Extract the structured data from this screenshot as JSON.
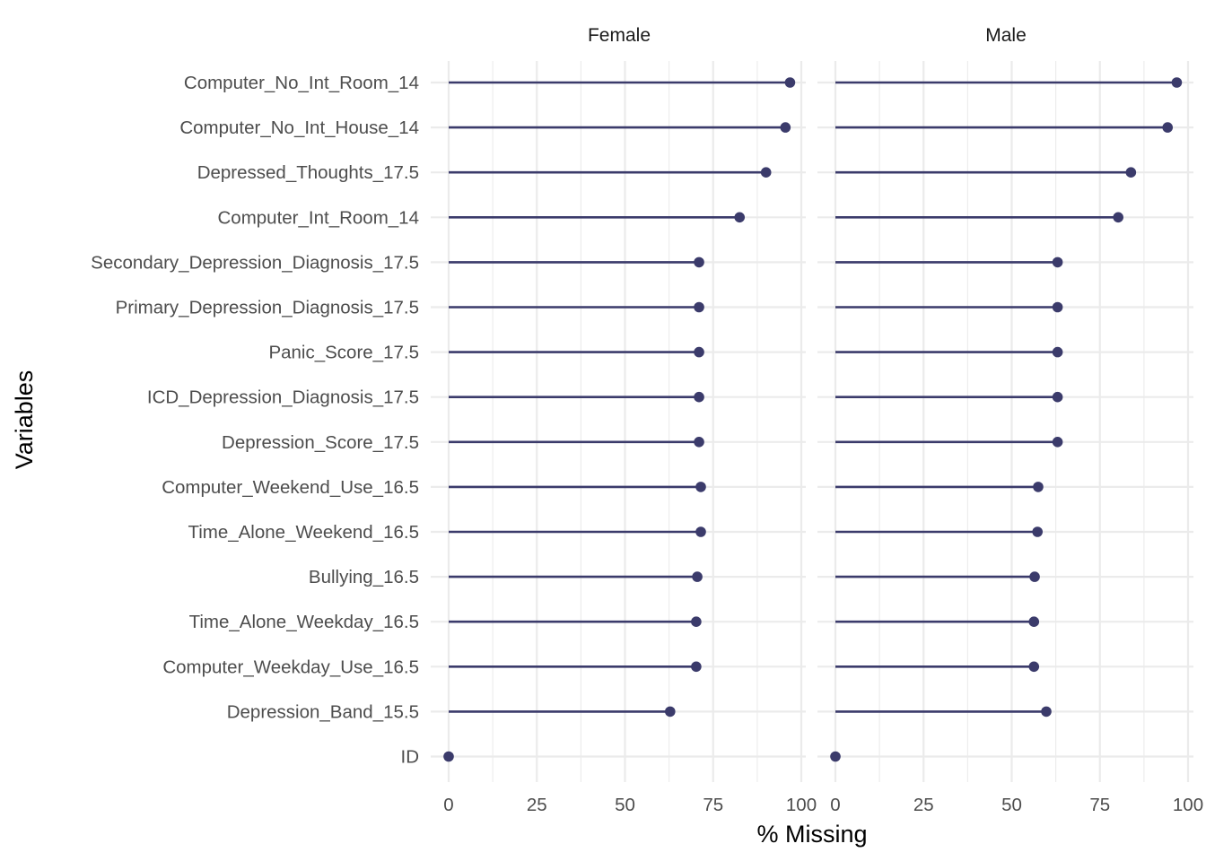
{
  "chart_data": {
    "type": "lollipop",
    "facets": [
      "Female",
      "Male"
    ],
    "xlabel": "% Missing",
    "ylabel": "Variables",
    "xlim": [
      0,
      100
    ],
    "xticks": [
      0,
      25,
      50,
      75,
      100
    ],
    "grid": true,
    "colors": {
      "point": "#3b3b6b",
      "grid": "#ebebeb"
    },
    "categories": [
      "Computer_No_Int_Room_14",
      "Computer_No_Int_House_14",
      "Depressed_Thoughts_17.5",
      "Computer_Int_Room_14",
      "Secondary_Depression_Diagnosis_17.5",
      "Primary_Depression_Diagnosis_17.5",
      "Panic_Score_17.5",
      "ICD_Depression_Diagnosis_17.5",
      "Depression_Score_17.5",
      "Computer_Weekend_Use_16.5",
      "Time_Alone_Weekend_16.5",
      "Bullying_16.5",
      "Time_Alone_Weekday_16.5",
      "Computer_Weekday_Use_16.5",
      "Depression_Band_15.5",
      "ID"
    ],
    "series": [
      {
        "name": "Female",
        "values": [
          96.8,
          95.5,
          90.0,
          82.5,
          71.0,
          71.0,
          71.0,
          71.0,
          71.0,
          71.5,
          71.5,
          70.5,
          70.2,
          70.2,
          62.8,
          0
        ]
      },
      {
        "name": "Male",
        "values": [
          96.8,
          94.2,
          83.8,
          80.2,
          63.0,
          63.0,
          63.0,
          63.0,
          63.0,
          57.5,
          57.3,
          56.5,
          56.3,
          56.3,
          59.8,
          0
        ]
      }
    ]
  }
}
